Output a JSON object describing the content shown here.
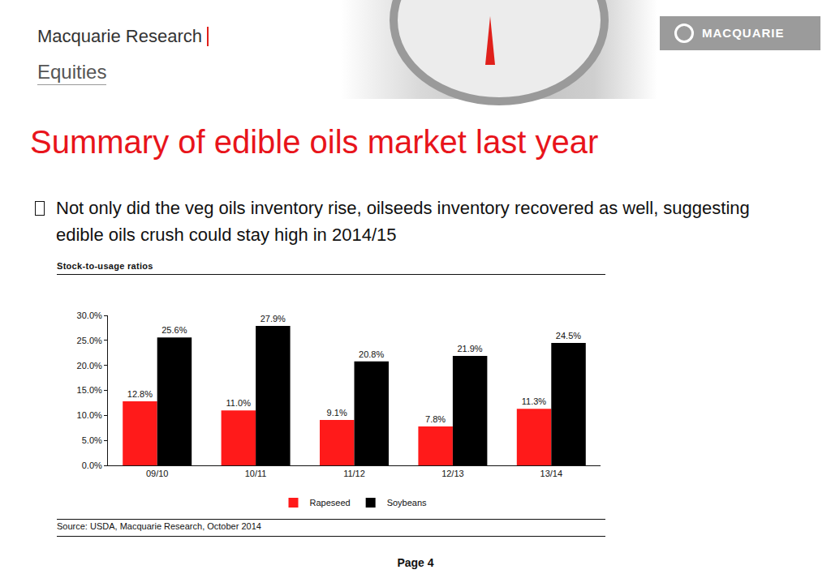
{
  "header": {
    "brand": "Macquarie Research",
    "section": "Equities",
    "logo": "MACQUARIE"
  },
  "slide": {
    "title": "Summary of edible oils market last year",
    "bullet": "Not only did the veg oils inventory rise, oilseeds inventory recovered as well, suggesting edible oils crush could stay high in 2014/15",
    "page": "Page 4"
  },
  "chart_data": {
    "type": "bar",
    "title": "Stock-to-usage ratios",
    "source": "Source: USDA, Macquarie Research, October 2014",
    "categories": [
      "09/10",
      "10/11",
      "11/12",
      "12/13",
      "13/14"
    ],
    "series": [
      {
        "name": "Rapeseed",
        "color": "#ff1a1a",
        "values": [
          12.8,
          11.0,
          9.1,
          7.8,
          11.3
        ],
        "value_labels": [
          "12.8%",
          "11.0%",
          "9.1%",
          "7.8%",
          "11.3%"
        ]
      },
      {
        "name": "Soybeans",
        "color": "#000000",
        "values": [
          25.6,
          27.9,
          20.8,
          21.9,
          24.5
        ],
        "value_labels": [
          "25.6%",
          "27.9%",
          "20.8%",
          "21.9%",
          "24.5%"
        ]
      }
    ],
    "ylim": [
      0,
      30
    ],
    "yticks": [
      {
        "value": 0,
        "label": "0.0%"
      },
      {
        "value": 5,
        "label": "5.0%"
      },
      {
        "value": 10,
        "label": "10.0%"
      },
      {
        "value": 15,
        "label": "15.0%"
      },
      {
        "value": 20,
        "label": "20.0%"
      },
      {
        "value": 25,
        "label": "25.0%"
      },
      {
        "value": 30,
        "label": "30.0%"
      }
    ],
    "grid": false,
    "legend": "bottom",
    "data_labels": true
  }
}
